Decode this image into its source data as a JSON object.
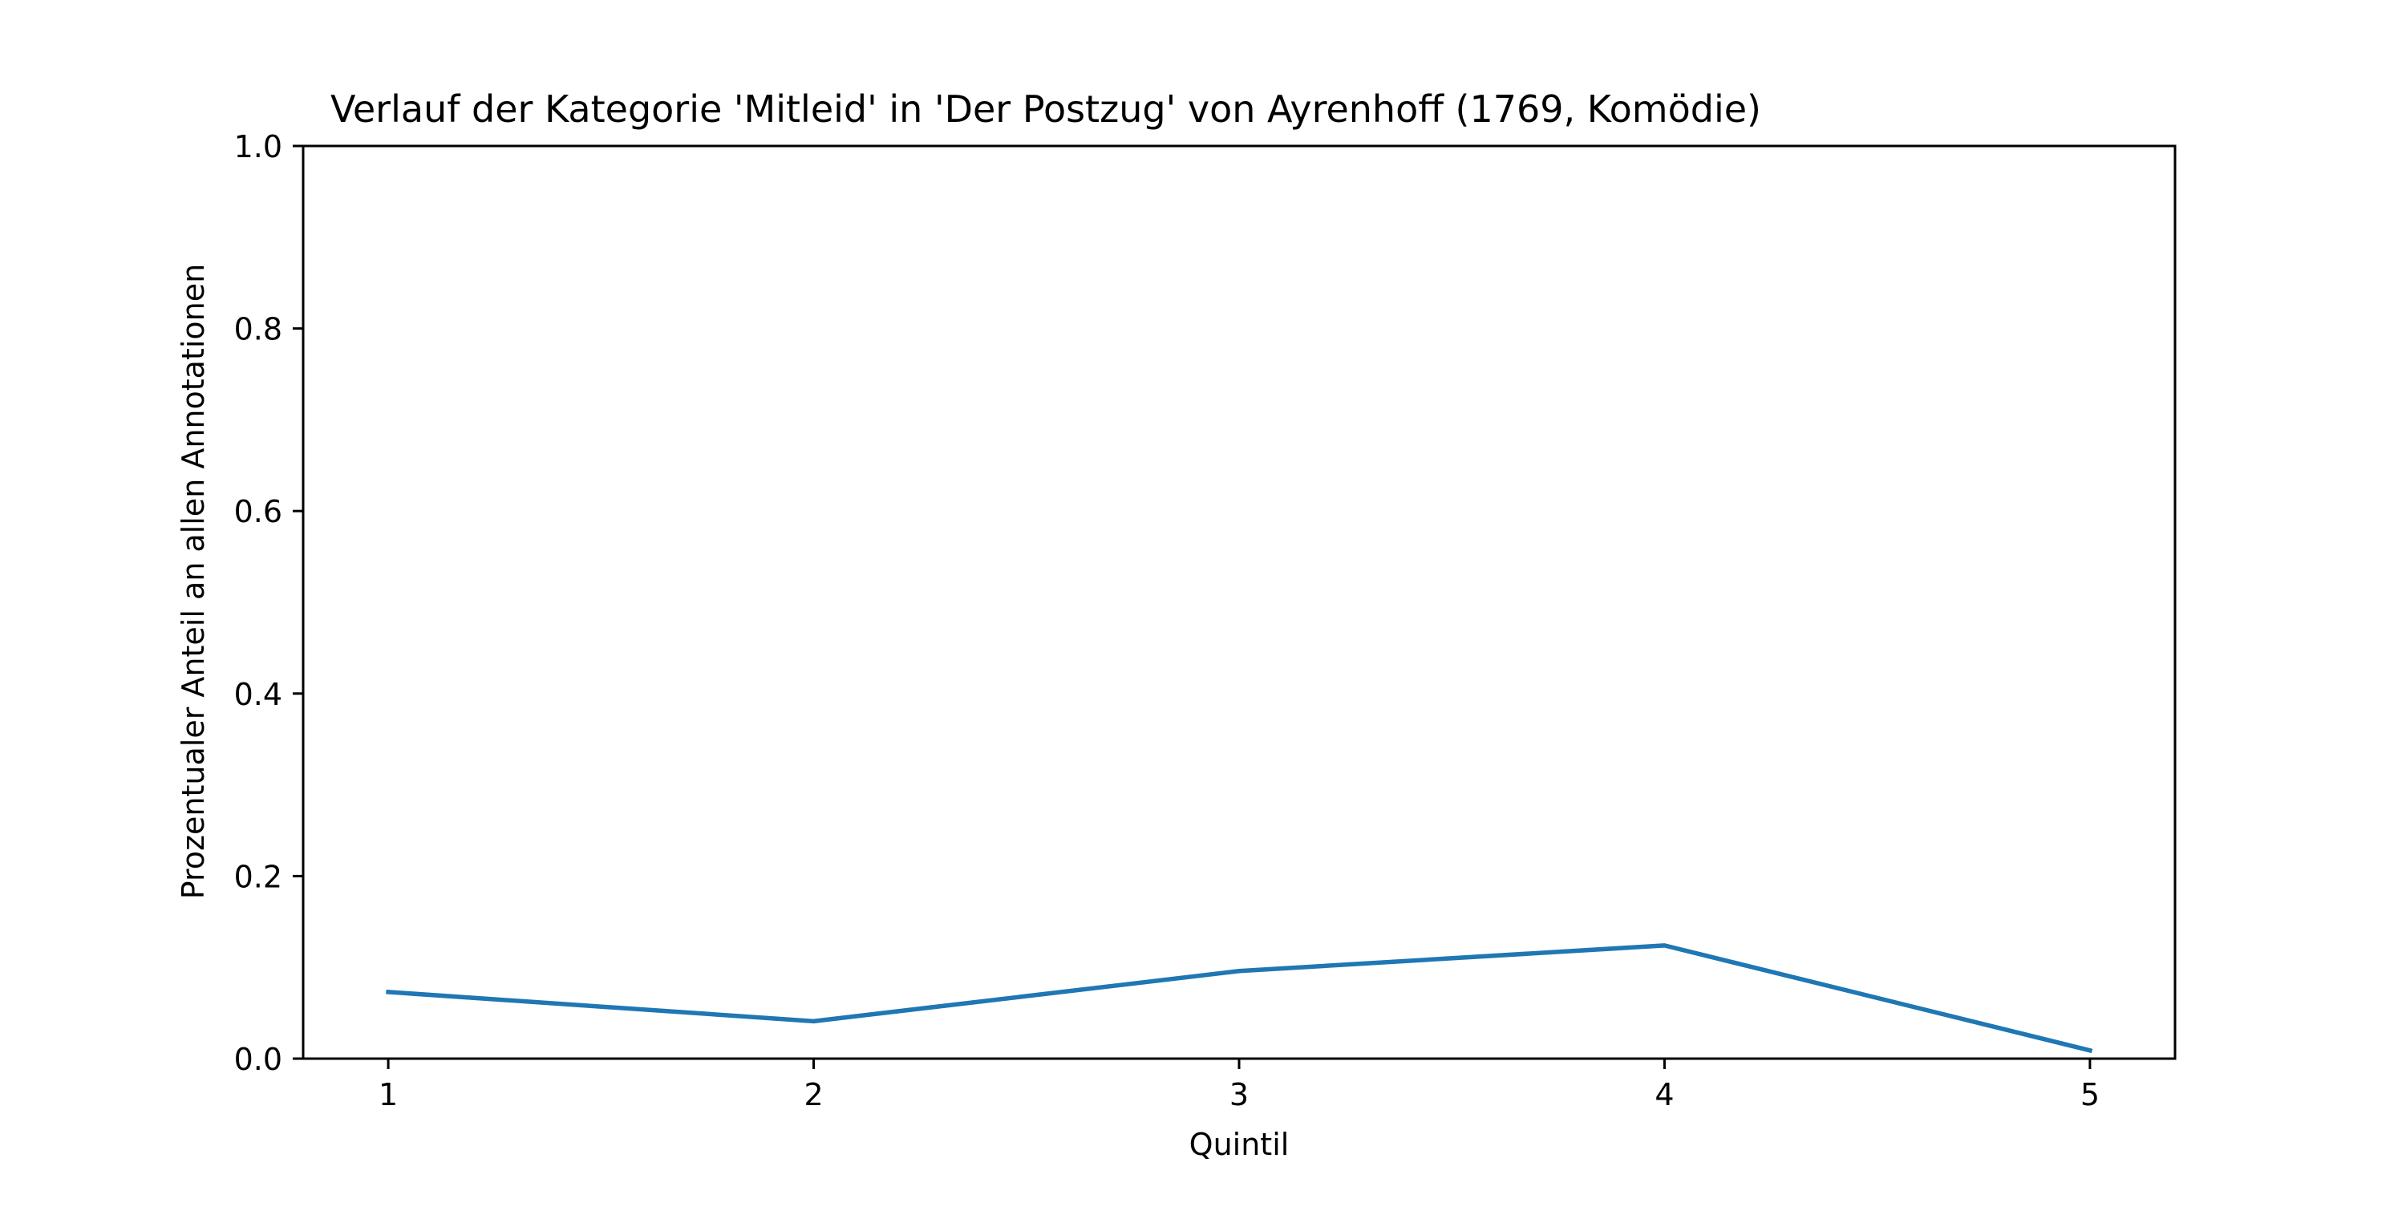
{
  "chart_data": {
    "type": "line",
    "title": "Verlauf der Kategorie 'Mitleid' in 'Der Postzug' von Ayrenhoff (1769, Komödie)",
    "xlabel": "Quintil",
    "ylabel": "Prozentualer Anteil an allen Annotationen",
    "x": [
      1,
      2,
      3,
      4,
      5
    ],
    "x_tick_labels": [
      "1",
      "2",
      "3",
      "4",
      "5"
    ],
    "xlim": [
      0.8,
      5.2
    ],
    "ylim": [
      0.0,
      1.0
    ],
    "y_ticks": [
      0.0,
      0.2,
      0.4,
      0.6,
      0.8,
      1.0
    ],
    "y_tick_labels": [
      "0.0",
      "0.2",
      "0.4",
      "0.6",
      "0.8",
      "1.0"
    ],
    "grid": false,
    "series": [
      {
        "values": [
          0.073,
          0.041,
          0.096,
          0.124,
          0.009
        ],
        "color": "#1f77b4"
      }
    ]
  }
}
